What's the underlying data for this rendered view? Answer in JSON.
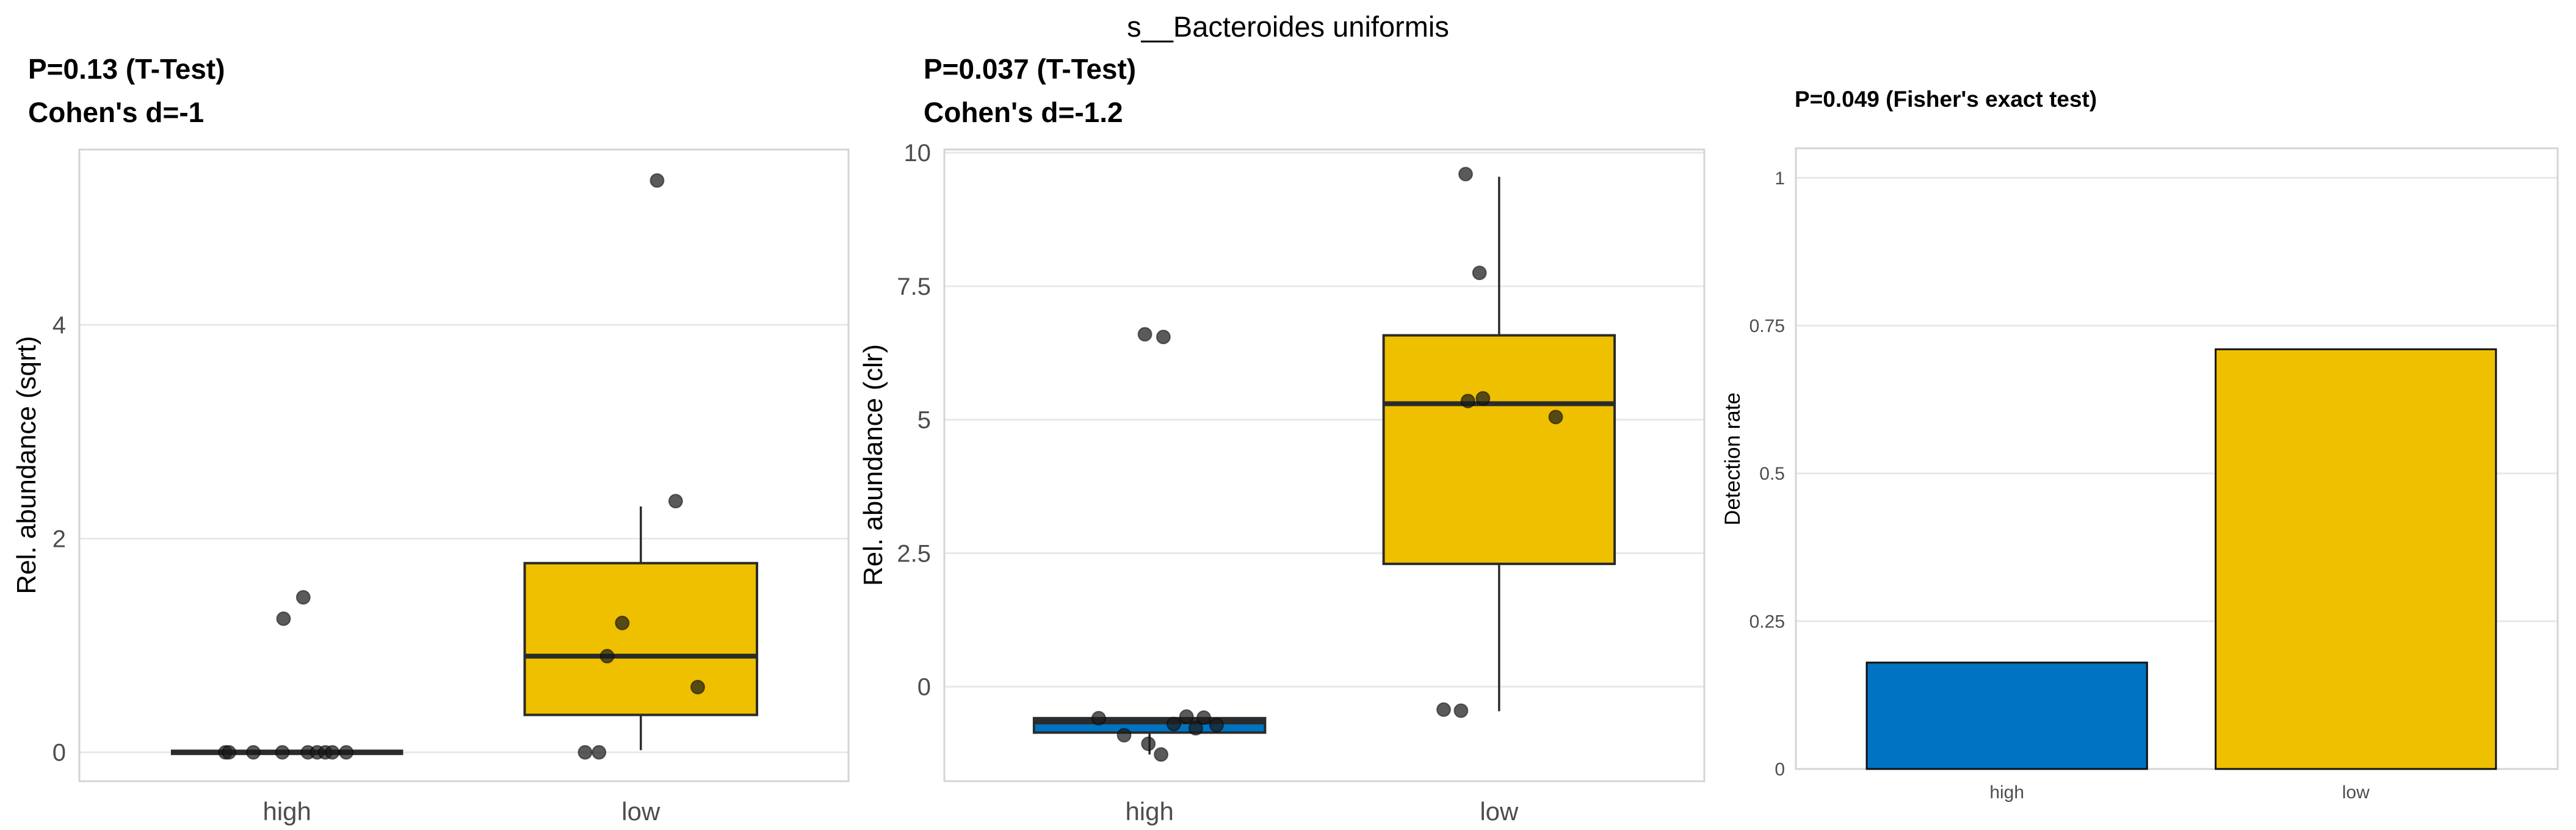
{
  "figure": {
    "title": "s__Bacteroides uniformis",
    "background": "#ffffff"
  },
  "palette": {
    "high": "#0073C2",
    "low": "#EFC000",
    "box_stroke": "#2B2B2B",
    "median": "#2B2B2B",
    "grid": "#E8E8E8",
    "panel_border": "#D4D4D4",
    "point_fill": "rgba(26,26,26,0.72)",
    "point_stroke": "rgba(0,0,0,0.5)",
    "tick_text": "#4D4D4D",
    "bar_stroke": "#111111"
  },
  "chart_data": [
    {
      "type": "boxplot",
      "title_lines": [
        "P=0.13 (T-Test)",
        "Cohen's d=-1"
      ],
      "ylabel": "Rel. abundance (sqrt)",
      "categories": [
        "high",
        "low"
      ],
      "yticks": [
        "0",
        "2",
        "4"
      ],
      "ytick_values": [
        0,
        2,
        4
      ],
      "ylim": [
        -0.27,
        5.64
      ],
      "legend": "none",
      "grid": "major-y",
      "groups": [
        {
          "name": "high",
          "color": "#0073C2",
          "collapsed": true,
          "stats": {
            "min": 0,
            "q1": 0,
            "median": 0,
            "q3": 0,
            "max": 0
          },
          "points": [
            {
              "v": 0,
              "j": -0.53
            },
            {
              "v": 0,
              "j": -0.5
            },
            {
              "v": 0,
              "j": -0.29
            },
            {
              "v": 0,
              "j": -0.04
            },
            {
              "v": 0,
              "j": 0.18
            },
            {
              "v": 0,
              "j": 0.26
            },
            {
              "v": 0,
              "j": 0.33
            },
            {
              "v": 0,
              "j": 0.39
            },
            {
              "v": 0,
              "j": 0.51
            },
            {
              "v": 1.45,
              "j": 0.14
            },
            {
              "v": 1.25,
              "j": -0.03
            }
          ]
        },
        {
          "name": "low",
          "color": "#EFC000",
          "collapsed": false,
          "stats": {
            "min": 0.02,
            "q1": 0.35,
            "median": 0.9,
            "q3": 1.77,
            "max": 2.3
          },
          "points": [
            {
              "v": 5.35,
              "j": 0.14
            },
            {
              "v": 2.35,
              "j": 0.3
            },
            {
              "v": 1.21,
              "j": -0.16
            },
            {
              "v": 0.9,
              "j": -0.29
            },
            {
              "v": 0.61,
              "j": 0.49
            },
            {
              "v": 0,
              "j": -0.48
            },
            {
              "v": 0,
              "j": -0.36
            }
          ]
        }
      ]
    },
    {
      "type": "boxplot",
      "title_lines": [
        "P=0.037 (T-Test)",
        "Cohen's d=-1.2"
      ],
      "ylabel": "Rel. abundance (clr)",
      "categories": [
        "high",
        "low"
      ],
      "yticks": [
        "0",
        "2.5",
        "5",
        "7.5",
        "10"
      ],
      "ytick_values": [
        0,
        2.5,
        5,
        7.5,
        10
      ],
      "ylim": [
        -1.77,
        10.06
      ],
      "legend": "none",
      "grid": "major-y",
      "groups": [
        {
          "name": "high",
          "color": "#0073C2",
          "collapsed": false,
          "stats": {
            "min": -1.27,
            "q1": -0.86,
            "median": -0.66,
            "q3": -0.59,
            "max": -0.59
          },
          "points": [
            {
              "v": 6.6,
              "j": -0.04
            },
            {
              "v": 6.55,
              "j": 0.12
            },
            {
              "v": -0.56,
              "j": 0.32
            },
            {
              "v": -0.58,
              "j": 0.47
            },
            {
              "v": -0.59,
              "j": -0.44
            },
            {
              "v": -0.7,
              "j": 0.21
            },
            {
              "v": -0.72,
              "j": 0.58
            },
            {
              "v": -0.78,
              "j": 0.4
            },
            {
              "v": -0.91,
              "j": -0.22
            },
            {
              "v": -1.07,
              "j": -0.01
            },
            {
              "v": -1.27,
              "j": 0.1
            }
          ]
        },
        {
          "name": "low",
          "color": "#EFC000",
          "collapsed": false,
          "stats": {
            "min": -0.46,
            "q1": 2.3,
            "median": 5.3,
            "q3": 6.58,
            "max": 9.55
          },
          "points": [
            {
              "v": 9.6,
              "j": -0.29
            },
            {
              "v": 7.75,
              "j": -0.17
            },
            {
              "v": 5.4,
              "j": -0.14
            },
            {
              "v": 5.35,
              "j": -0.27
            },
            {
              "v": 5.05,
              "j": 0.49
            },
            {
              "v": -0.43,
              "j": -0.48
            },
            {
              "v": -0.45,
              "j": -0.33
            }
          ]
        }
      ]
    },
    {
      "type": "bar",
      "title": "P=0.049 (Fisher's exact test)",
      "ylabel": "Detection rate",
      "xlabel": "",
      "categories": [
        "high",
        "low"
      ],
      "values": [
        0.18,
        0.71
      ],
      "colors": [
        "#0073C2",
        "#EFC000"
      ],
      "yticks": [
        "0",
        "0.25",
        "0.5",
        "0.75",
        "1"
      ],
      "ytick_values": [
        0,
        0.25,
        0.5,
        0.75,
        1
      ],
      "ylim": [
        0,
        1.05
      ],
      "legend": "none",
      "grid": "major-y"
    }
  ]
}
